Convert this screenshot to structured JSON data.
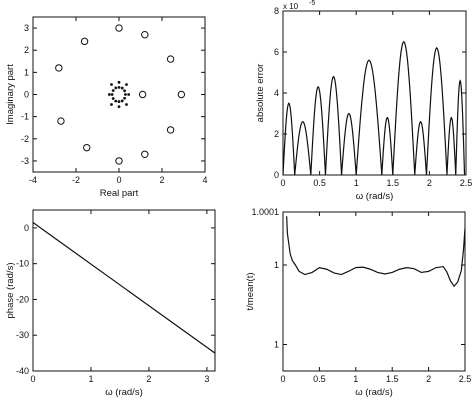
{
  "chart_data": [
    {
      "type": "scatter",
      "xlabel": "Real part",
      "ylabel": "Imaginary part",
      "xlim": [
        -4,
        4
      ],
      "ylim": [
        -3.5,
        3.5
      ],
      "xticks": [
        -4,
        -2,
        0,
        2,
        4
      ],
      "yticks": [
        3,
        2,
        1,
        0,
        -1,
        -2,
        -3
      ],
      "series": [
        {
          "marker": "circle",
          "points": [
            {
              "x": 0,
              "y": 3
            },
            {
              "x": 1.2,
              "y": 2.7
            },
            {
              "x": -1.6,
              "y": 2.4
            },
            {
              "x": 2.4,
              "y": 1.6
            },
            {
              "x": -2.8,
              "y": 1.2
            },
            {
              "x": 2.9,
              "y": 0
            },
            {
              "x": 1.1,
              "y": 0
            },
            {
              "x": -2.7,
              "y": -1.2
            },
            {
              "x": 2.4,
              "y": -1.6
            },
            {
              "x": -1.5,
              "y": -2.4
            },
            {
              "x": 1.2,
              "y": -2.7
            },
            {
              "x": 0,
              "y": -3
            }
          ]
        },
        {
          "marker": "dot",
          "points": [
            {
              "x": 0.3,
              "y": 0
            },
            {
              "x": 0.26,
              "y": 0.17
            },
            {
              "x": 0.15,
              "y": 0.29
            },
            {
              "x": 0,
              "y": 0.32
            },
            {
              "x": -0.15,
              "y": 0.3
            },
            {
              "x": -0.27,
              "y": 0.18
            },
            {
              "x": -0.32,
              "y": 0
            },
            {
              "x": -0.27,
              "y": -0.18
            },
            {
              "x": -0.15,
              "y": -0.3
            },
            {
              "x": 0,
              "y": -0.32
            },
            {
              "x": 0.15,
              "y": -0.29
            },
            {
              "x": 0.26,
              "y": -0.17
            },
            {
              "x": 0.45,
              "y": 0
            },
            {
              "x": -0.45,
              "y": 0
            },
            {
              "x": 0,
              "y": 0.55
            },
            {
              "x": 0,
              "y": -0.55
            },
            {
              "x": 0.35,
              "y": 0.45
            },
            {
              "x": -0.35,
              "y": 0.45
            },
            {
              "x": 0.35,
              "y": -0.45
            },
            {
              "x": -0.35,
              "y": -0.45
            }
          ]
        }
      ]
    },
    {
      "type": "line",
      "xlabel": "ω (rad/s)",
      "ylabel": "absolute error",
      "exponent_label": "x 10",
      "exponent_power": "-5",
      "xlim": [
        0,
        2.5
      ],
      "ylim": [
        0,
        8
      ],
      "xticks": [
        0,
        0.5,
        1,
        1.5,
        2,
        2.5
      ],
      "yticks": [
        0,
        2,
        4,
        6,
        8
      ],
      "series": [
        {
          "lobes": [
            {
              "start": 0,
              "end": 0.16,
              "peak": 3.5
            },
            {
              "start": 0.16,
              "end": 0.38,
              "peak": 2.6
            },
            {
              "start": 0.38,
              "end": 0.58,
              "peak": 4.3
            },
            {
              "start": 0.58,
              "end": 0.8,
              "peak": 4.8
            },
            {
              "start": 0.8,
              "end": 1.0,
              "peak": 3.0
            },
            {
              "start": 1.0,
              "end": 1.35,
              "peak": 5.6
            },
            {
              "start": 1.35,
              "end": 1.5,
              "peak": 2.8
            },
            {
              "start": 1.5,
              "end": 1.8,
              "peak": 6.5
            },
            {
              "start": 1.8,
              "end": 1.96,
              "peak": 2.6
            },
            {
              "start": 1.96,
              "end": 2.24,
              "peak": 6.2
            },
            {
              "start": 2.24,
              "end": 2.36,
              "peak": 2.8
            },
            {
              "start": 2.36,
              "end": 2.48,
              "peak": 4.6
            }
          ]
        }
      ]
    },
    {
      "type": "line",
      "xlabel": "ω (rad/s)",
      "ylabel": "phase (rad/s)",
      "xlim": [
        0,
        3.14
      ],
      "ylim": [
        -40,
        5
      ],
      "xticks": [
        0,
        1,
        2,
        3
      ],
      "yticks": [
        0,
        -10,
        -20,
        -30,
        -40
      ],
      "series": [
        {
          "x": [
            0,
            3.14
          ],
          "y": [
            1.5,
            -35
          ]
        }
      ]
    },
    {
      "type": "line",
      "xlabel": "ω (rad/s)",
      "ylabel": "t/mean(t)",
      "xlim": [
        0,
        2.5
      ],
      "ylim": [
        0.9998,
        1.0001
      ],
      "xticks": [
        0,
        0.5,
        1,
        1.5,
        2,
        2.5
      ],
      "ytick_labels": [
        "1.0001",
        "1",
        "1"
      ],
      "ytick_values": [
        1.0001,
        1.0,
        0.99985
      ],
      "series": [
        {
          "x": [
            0.05,
            0.06,
            0.08,
            0.1,
            0.13,
            0.17,
            0.22,
            0.3,
            0.4,
            0.5,
            0.6,
            0.7,
            0.8,
            0.9,
            1.0,
            1.1,
            1.2,
            1.3,
            1.4,
            1.5,
            1.6,
            1.7,
            1.8,
            1.9,
            2.0,
            2.1,
            2.2,
            2.25,
            2.3,
            2.35,
            2.4,
            2.45,
            2.48,
            2.5
          ],
          "y": [
            1.000092,
            1.00006,
            1.00004,
            1.00002,
            1.000008,
            1.0,
            0.999988,
            0.999982,
            0.999986,
            0.999995,
            0.999992,
            0.999985,
            0.999982,
            0.999988,
            0.999995,
            0.999996,
            0.999992,
            0.999986,
            0.999983,
            0.999986,
            0.999992,
            0.999995,
            0.999993,
            0.999986,
            0.999988,
            0.999995,
            0.999997,
            0.999987,
            0.99997,
            0.99996,
            0.999968,
            0.99999,
            1.00003,
            1.00007
          ]
        }
      ]
    }
  ]
}
